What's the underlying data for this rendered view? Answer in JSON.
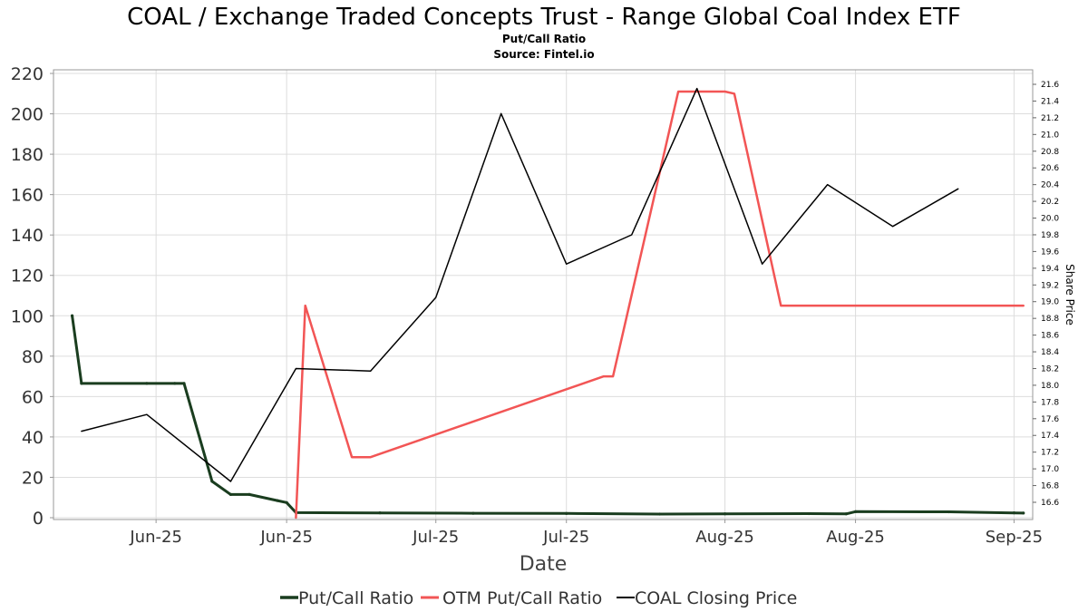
{
  "chart_data": {
    "type": "line",
    "title": "COAL / Exchange Traded Concepts Trust - Range Global Coal Index ETF",
    "subtitle_lines": [
      "Put/Call Ratio",
      "Source: Fintel.io"
    ],
    "xlabel": "Date",
    "ylabel_left": "",
    "ylabel_right": "Share Price",
    "left_ylim": [
      0,
      220
    ],
    "left_ticks": [
      0,
      20,
      40,
      60,
      80,
      100,
      120,
      140,
      160,
      180,
      200,
      220
    ],
    "right_ylim": [
      16.5,
      21.7
    ],
    "right_ticks": [
      16.6,
      16.8,
      17.0,
      17.2,
      17.4,
      17.6,
      17.8,
      18.0,
      18.2,
      18.4,
      18.6,
      18.8,
      19.0,
      19.2,
      19.4,
      19.6,
      19.8,
      20.0,
      20.2,
      20.4,
      20.6,
      20.8,
      21.0,
      21.2,
      21.4,
      21.6
    ],
    "x_start": "2025-05-21",
    "x_end": "2025-09-03",
    "x_ticks": [
      {
        "date": "2025-06-01",
        "label": "Jun-25"
      },
      {
        "date": "2025-06-15",
        "label": "Jun-25"
      },
      {
        "date": "2025-07-01",
        "label": "Jul-25"
      },
      {
        "date": "2025-07-15",
        "label": "Jul-25"
      },
      {
        "date": "2025-08-01",
        "label": "Aug-25"
      },
      {
        "date": "2025-08-15",
        "label": "Aug-25"
      },
      {
        "date": "2025-09-01",
        "label": "Sep-25"
      }
    ],
    "grid": true,
    "legend_position": "bottom",
    "series": [
      {
        "name": "Put/Call Ratio",
        "axis": "left",
        "color": "#1a3d1f",
        "width": 3,
        "points": [
          [
            "2025-05-23",
            100
          ],
          [
            "2025-05-24",
            66.5
          ],
          [
            "2025-05-31",
            66.5
          ],
          [
            "2025-06-03",
            66.5
          ],
          [
            "2025-06-04",
            66.5
          ],
          [
            "2025-06-07",
            18
          ],
          [
            "2025-06-09",
            11.5
          ],
          [
            "2025-06-11",
            11.5
          ],
          [
            "2025-06-14",
            8.5
          ],
          [
            "2025-06-15",
            7.5
          ],
          [
            "2025-06-16",
            2.5
          ],
          [
            "2025-06-25",
            2.4
          ],
          [
            "2025-07-05",
            2.2
          ],
          [
            "2025-07-15",
            2.1
          ],
          [
            "2025-07-25",
            1.8
          ],
          [
            "2025-08-01",
            1.9
          ],
          [
            "2025-08-10",
            2.0
          ],
          [
            "2025-08-14",
            1.9
          ],
          [
            "2025-08-15",
            3.0
          ],
          [
            "2025-08-25",
            2.9
          ],
          [
            "2025-09-01",
            2.4
          ],
          [
            "2025-09-02",
            2.3
          ]
        ]
      },
      {
        "name": "OTM Put/Call Ratio",
        "axis": "left",
        "color": "#f25555",
        "width": 2.5,
        "points": [
          [
            "2025-06-16",
            0
          ],
          [
            "2025-06-17",
            105
          ],
          [
            "2025-06-22",
            30
          ],
          [
            "2025-06-24",
            30
          ],
          [
            "2025-07-19",
            70
          ],
          [
            "2025-07-20",
            70
          ],
          [
            "2025-07-27",
            211
          ],
          [
            "2025-08-01",
            211
          ],
          [
            "2025-08-02",
            210
          ],
          [
            "2025-08-07",
            105
          ],
          [
            "2025-09-02",
            105
          ]
        ]
      },
      {
        "name": "COAL Closing Price",
        "axis": "right",
        "color": "#000000",
        "width": 1.5,
        "points": [
          [
            "2025-05-24",
            17.45
          ],
          [
            "2025-05-31",
            17.65
          ],
          [
            "2025-06-09",
            16.85
          ],
          [
            "2025-06-16",
            18.2
          ],
          [
            "2025-06-24",
            18.17
          ],
          [
            "2025-07-01",
            19.05
          ],
          [
            "2025-07-08",
            21.25
          ],
          [
            "2025-07-15",
            19.45
          ],
          [
            "2025-07-22",
            19.8
          ],
          [
            "2025-07-29",
            21.55
          ],
          [
            "2025-08-05",
            19.45
          ],
          [
            "2025-08-12",
            20.4
          ],
          [
            "2025-08-19",
            19.9
          ],
          [
            "2025-08-26",
            20.35
          ]
        ]
      }
    ]
  }
}
